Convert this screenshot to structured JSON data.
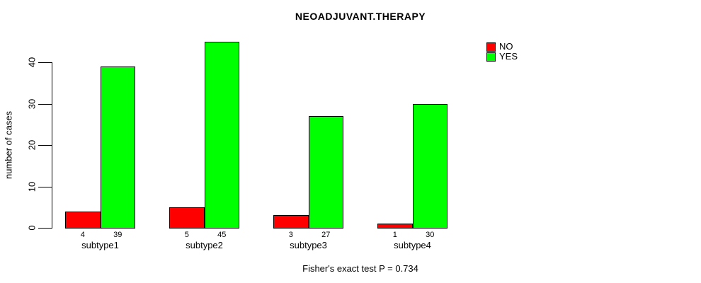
{
  "chart_data": {
    "type": "bar",
    "title": "NEOADJUVANT.THERAPY",
    "ylabel": "number of cases",
    "xlabel": "",
    "categories": [
      "subtype1",
      "subtype2",
      "subtype3",
      "subtype4"
    ],
    "series": [
      {
        "name": "NO",
        "color": "#ff0000",
        "values": [
          4,
          5,
          3,
          1
        ]
      },
      {
        "name": "YES",
        "color": "#00ff00",
        "values": [
          39,
          45,
          27,
          30
        ]
      }
    ],
    "yticks": [
      0,
      10,
      20,
      30,
      40
    ],
    "ylim": [
      0,
      45
    ],
    "grid": false,
    "legend_position": "top-right",
    "bar_value_labels_shown": true,
    "footer": "Fisher's exact test P = 0.734",
    "colors": {
      "axis": "#000000",
      "text": "#000000",
      "background": "#ffffff"
    }
  }
}
